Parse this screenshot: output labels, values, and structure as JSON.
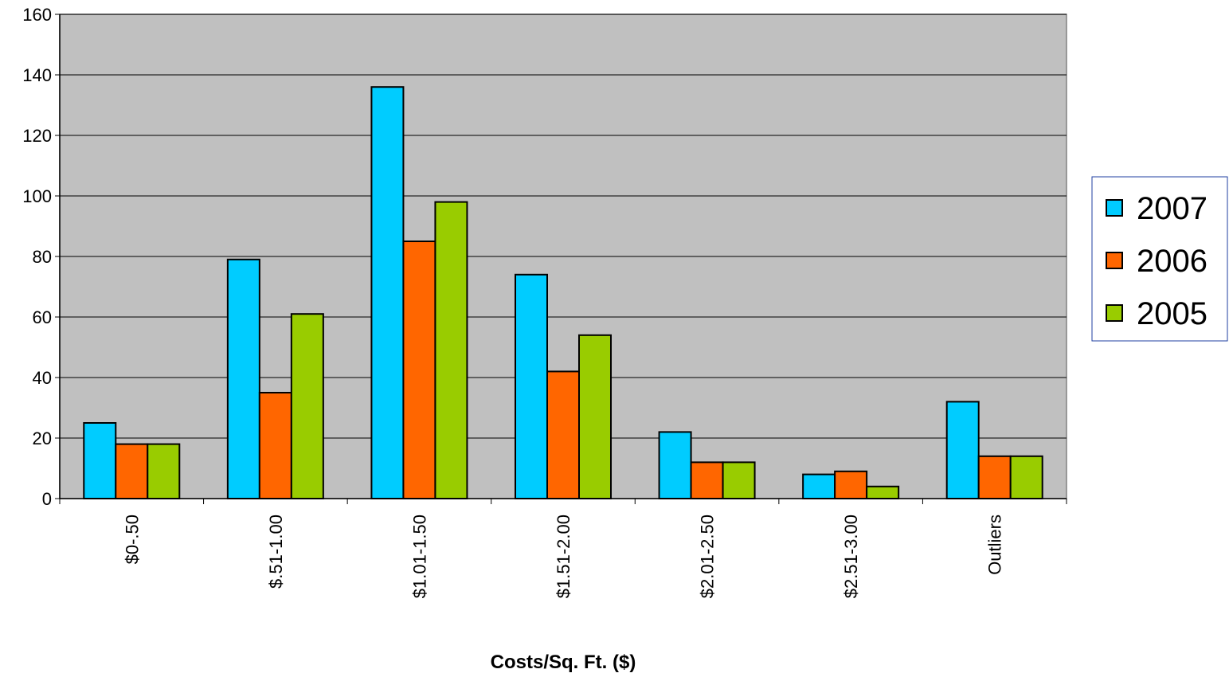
{
  "chart_data": {
    "type": "bar",
    "title": "",
    "xlabel": "Costs/Sq. Ft. ($)",
    "ylabel": "",
    "ylim": [
      0,
      160
    ],
    "yticks": [
      0,
      20,
      40,
      60,
      80,
      100,
      120,
      140,
      160
    ],
    "grid": true,
    "legend_position": "right",
    "plot_background": "#C0C0C0",
    "categories": [
      "$0-.50",
      "$.51-1.00",
      "$1.01-1.50",
      "$1.51-2.00",
      "$2.01-2.50",
      "$2.51-3.00",
      "Outliers"
    ],
    "series": [
      {
        "name": "2007",
        "color": "#00CCFF",
        "values": [
          25,
          79,
          136,
          74,
          22,
          8,
          32
        ]
      },
      {
        "name": "2006",
        "color": "#FF6600",
        "values": [
          18,
          35,
          85,
          42,
          12,
          9,
          14
        ]
      },
      {
        "name": "2005",
        "color": "#99CC00",
        "values": [
          18,
          61,
          98,
          54,
          12,
          4,
          14
        ]
      }
    ]
  }
}
